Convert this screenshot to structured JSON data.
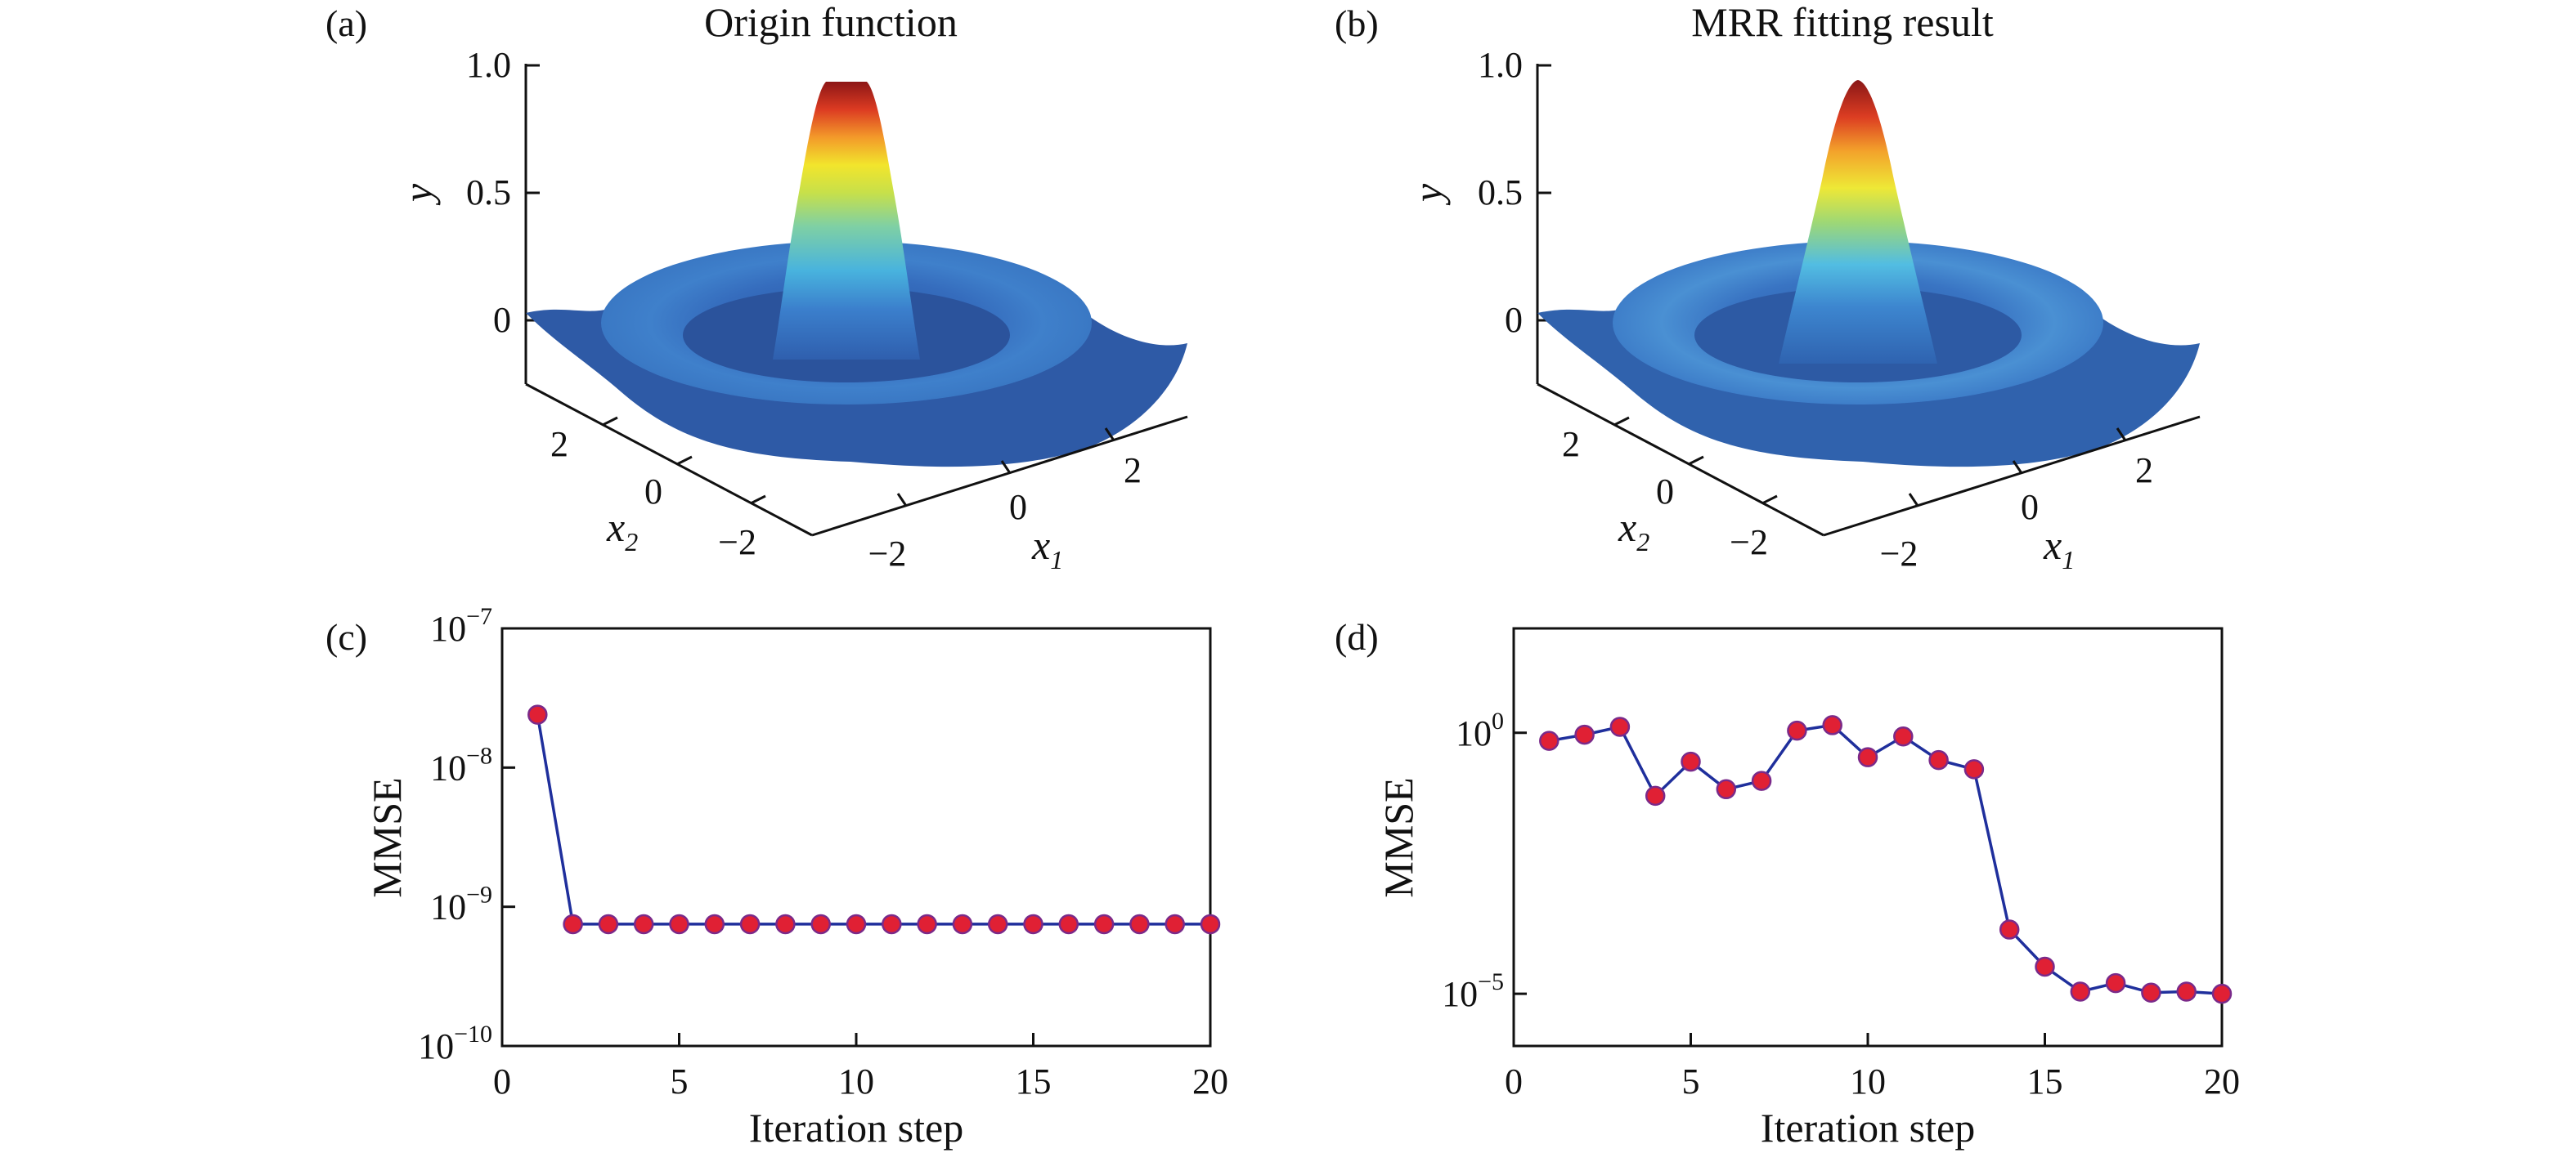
{
  "figure": {
    "panel_a": {
      "letter": "(a)",
      "title": "Origin function"
    },
    "panel_b": {
      "letter": "(b)",
      "title": "MRR fitting result"
    },
    "panel_c": {
      "letter": "(c)"
    },
    "panel_d": {
      "letter": "(d)"
    }
  },
  "chart_data": [
    {
      "type": "surface",
      "panel": "(a)",
      "title": "Origin function",
      "xlabel": "x1",
      "ylabel": "x2",
      "zlabel": "y",
      "x_ticks": [
        "−2",
        "0",
        "2"
      ],
      "y_ticks": [
        "−2",
        "0",
        "2"
      ],
      "z_ticks": [
        "0",
        "0.5",
        "1.0"
      ],
      "xlim": [
        -3,
        3
      ],
      "ylim": [
        -3,
        3
      ],
      "zlim": [
        -0.2,
        1.0
      ],
      "surface": "radial ripple (sinc-like) with central peak 1.0 at origin and ring minimum ≈ -0.2",
      "colormap": "jet"
    },
    {
      "type": "surface",
      "panel": "(b)",
      "title": "MRR fitting result",
      "xlabel": "x1",
      "ylabel": "x2",
      "zlabel": "y",
      "x_ticks": [
        "−2",
        "0",
        "2"
      ],
      "y_ticks": [
        "−2",
        "0",
        "2"
      ],
      "z_ticks": [
        "0",
        "0.5",
        "1.0"
      ],
      "xlim": [
        -3,
        3
      ],
      "ylim": [
        -3,
        3
      ],
      "zlim": [
        -0.2,
        1.0
      ],
      "surface": "smooth radial ripple with central peak ≈ 0.95 at origin",
      "colormap": "jet"
    },
    {
      "type": "line",
      "panel": "(c)",
      "xlabel": "Iteration step",
      "ylabel": "MMSE",
      "y_scale": "log",
      "xlim": [
        0,
        20
      ],
      "ylim": [
        1e-10,
        1e-07
      ],
      "x_ticks": [
        "0",
        "5",
        "10",
        "15",
        "20"
      ],
      "y_ticks": [
        {
          "base": "10",
          "exp": "−7",
          "value": 1e-07
        },
        {
          "base": "10",
          "exp": "−8",
          "value": 1e-08
        },
        {
          "base": "10",
          "exp": "−9",
          "value": 1e-09
        },
        {
          "base": "10",
          "exp": "−10",
          "value": 1e-10
        }
      ],
      "series": [
        {
          "x": [
            1,
            2,
            3,
            4,
            5,
            6,
            7,
            8,
            9,
            10,
            11,
            12,
            13,
            14,
            15,
            16,
            17,
            18,
            19,
            20
          ],
          "values": [
            2.4e-08,
            7.5e-10,
            7.5e-10,
            7.5e-10,
            7.5e-10,
            7.5e-10,
            7.5e-10,
            7.5e-10,
            7.5e-10,
            7.5e-10,
            7.5e-10,
            7.5e-10,
            7.5e-10,
            7.5e-10,
            7.5e-10,
            7.5e-10,
            7.5e-10,
            7.5e-10,
            7.5e-10,
            7.5e-10
          ]
        }
      ],
      "colors": {
        "line": "#1f2f9c",
        "marker": "#e02034"
      }
    },
    {
      "type": "line",
      "panel": "(d)",
      "xlabel": "Iteration step",
      "ylabel": "MMSE",
      "y_scale": "log",
      "xlim": [
        0,
        20
      ],
      "ylim": [
        1e-06,
        100.0
      ],
      "x_ticks": [
        "0",
        "5",
        "10",
        "15",
        "20"
      ],
      "y_ticks": [
        {
          "base": "10",
          "exp": "0",
          "value": 1
        },
        {
          "base": "10",
          "exp": "−5",
          "value": 1e-05
        }
      ],
      "series": [
        {
          "x": [
            1,
            2,
            3,
            4,
            5,
            6,
            7,
            8,
            9,
            10,
            11,
            12,
            13,
            14,
            15,
            16,
            17,
            18,
            19,
            20
          ],
          "values": [
            0.7,
            0.92,
            1.3,
            0.062,
            0.28,
            0.083,
            0.12,
            1.1,
            1.4,
            0.34,
            0.85,
            0.3,
            0.2,
            0.00017,
            3.3e-05,
            1.1e-05,
            1.6e-05,
            1.05e-05,
            1.1e-05,
            1e-05
          ]
        }
      ],
      "colors": {
        "line": "#1f2f9c",
        "marker": "#e02034"
      }
    }
  ]
}
